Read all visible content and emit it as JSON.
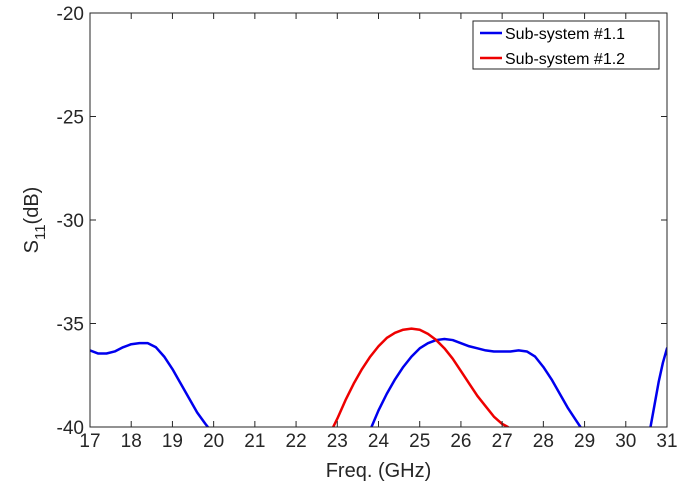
{
  "chart_data": {
    "type": "line",
    "title": "",
    "xlabel": "Freq. (GHz)",
    "ylabel_main": "S",
    "ylabel_sub": "11",
    "ylabel_unit": "(dB)",
    "xlim": [
      17,
      31
    ],
    "ylim": [
      -40,
      -20
    ],
    "xticks": [
      17,
      18,
      19,
      20,
      21,
      22,
      23,
      24,
      25,
      26,
      27,
      28,
      29,
      30,
      31
    ],
    "yticks": [
      -20,
      -25,
      -30,
      -35,
      -40
    ],
    "grid": false,
    "legend_position": "top-right",
    "series": [
      {
        "name": "Sub-system #1.1",
        "color": "#0000ee",
        "segments": [
          {
            "x": [
              17.0,
              17.2,
              17.4,
              17.6,
              17.8,
              18.0,
              18.2,
              18.4,
              18.6,
              18.8,
              19.0,
              19.2,
              19.4,
              19.6,
              19.8,
              19.86
            ],
            "y": [
              -36.3,
              -36.45,
              -36.45,
              -36.35,
              -36.15,
              -36.0,
              -35.95,
              -35.95,
              -36.15,
              -36.6,
              -37.2,
              -37.9,
              -38.6,
              -39.3,
              -39.85,
              -40.0
            ]
          },
          {
            "x": [
              23.83,
              24.0,
              24.2,
              24.4,
              24.6,
              24.8,
              25.0,
              25.2,
              25.4,
              25.6,
              25.8,
              26.0,
              26.2,
              26.4,
              26.6,
              26.8,
              27.0,
              27.2,
              27.4,
              27.6,
              27.8,
              28.0,
              28.2,
              28.4,
              28.6,
              28.8,
              28.9
            ],
            "y": [
              -40.0,
              -39.2,
              -38.4,
              -37.7,
              -37.1,
              -36.6,
              -36.2,
              -35.95,
              -35.8,
              -35.75,
              -35.8,
              -35.95,
              -36.1,
              -36.2,
              -36.3,
              -36.35,
              -36.35,
              -36.35,
              -36.3,
              -36.35,
              -36.6,
              -37.1,
              -37.7,
              -38.4,
              -39.1,
              -39.7,
              -40.0
            ]
          },
          {
            "x": [
              30.6,
              30.7,
              30.8,
              30.9,
              31.0
            ],
            "y": [
              -40.0,
              -38.9,
              -37.8,
              -36.9,
              -36.2
            ]
          }
        ]
      },
      {
        "name": "Sub-system #1.2",
        "color": "#ee0000",
        "segments": [
          {
            "x": [
              22.9,
              23.0,
              23.2,
              23.4,
              23.6,
              23.8,
              24.0,
              24.2,
              24.4,
              24.6,
              24.8,
              25.0,
              25.2,
              25.4,
              25.6,
              25.8,
              26.0,
              26.2,
              26.4,
              26.6,
              26.8,
              27.0,
              27.14
            ],
            "y": [
              -40.0,
              -39.6,
              -38.7,
              -37.9,
              -37.2,
              -36.6,
              -36.1,
              -35.7,
              -35.45,
              -35.3,
              -35.25,
              -35.3,
              -35.5,
              -35.8,
              -36.2,
              -36.7,
              -37.3,
              -37.9,
              -38.5,
              -39.0,
              -39.5,
              -39.85,
              -40.0
            ]
          }
        ]
      }
    ]
  }
}
